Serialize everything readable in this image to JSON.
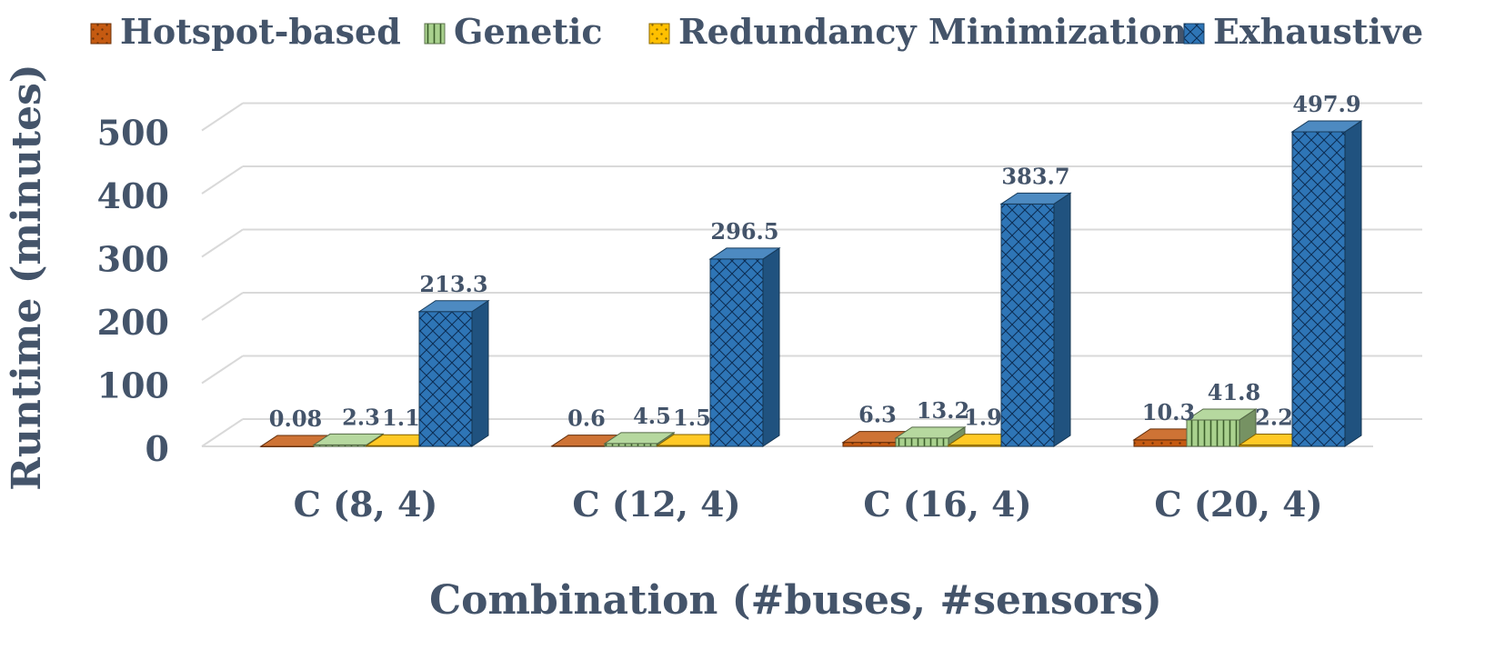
{
  "chart_data": {
    "type": "bar",
    "style": "3d-clustered-column",
    "categories": [
      "C (8, 4)",
      "C (12, 4)",
      "C (16, 4)",
      "C (20, 4)"
    ],
    "series": [
      {
        "name": "Hotspot-based",
        "values": [
          0.08,
          0.6,
          6.3,
          10.3
        ],
        "labels": [
          "0.08",
          "0.6",
          "6.3",
          "10.3"
        ],
        "color": "#C55A11",
        "pattern": "dots"
      },
      {
        "name": "Genetic",
        "values": [
          2.3,
          4.5,
          13.2,
          41.8
        ],
        "labels": [
          "2.3",
          "4.5",
          "13.2",
          "41.8"
        ],
        "color": "#A9D18E",
        "pattern": "vertical-lines"
      },
      {
        "name": "Redundancy Minimization",
        "values": [
          1.1,
          1.5,
          1.9,
          2.2
        ],
        "labels": [
          "1.1",
          "1.5",
          "1.9",
          "2.2"
        ],
        "color": "#FFC000",
        "pattern": "dots"
      },
      {
        "name": "Exhaustive",
        "values": [
          213.3,
          296.5,
          383.7,
          497.9
        ],
        "labels": [
          "213.3",
          "296.5",
          "383.7",
          "497.9"
        ],
        "color": "#2E75B6",
        "pattern": "crosshatch"
      }
    ],
    "xlabel": "Combination (#buses, #sensors)",
    "ylabel": "Runtime (minutes)",
    "ylim": [
      0,
      500
    ],
    "yticks": [
      0,
      100,
      200,
      300,
      400,
      500
    ],
    "ytick_labels": [
      "0",
      "100",
      "200",
      "300",
      "400",
      "500"
    ],
    "grid": true,
    "legend_position": "top"
  },
  "colors": {
    "text": "#44546A",
    "grid": "#D9D9D9"
  }
}
